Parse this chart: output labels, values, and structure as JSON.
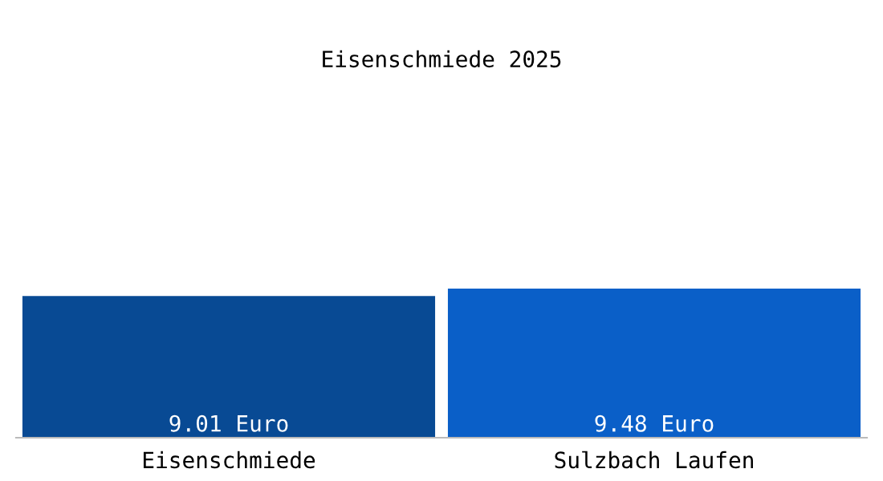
{
  "chart_data": {
    "type": "bar",
    "title": "Eisenschmiede 2025",
    "categories": [
      "Eisenschmiede",
      "Sulzbach Laufen"
    ],
    "values": [
      9.01,
      9.48
    ],
    "colors": [
      "#084a94",
      "#0a5fc8"
    ],
    "value_labels": [
      "9.01 Euro",
      "9.48 Euro"
    ],
    "grid": false,
    "legend": false
  }
}
